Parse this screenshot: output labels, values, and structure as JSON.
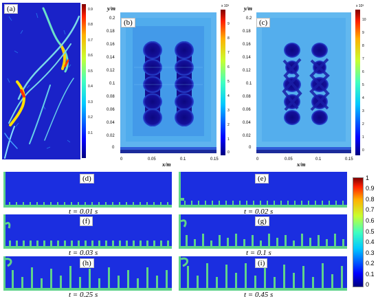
{
  "figure": {
    "panels": {
      "a": {
        "label": "(a)",
        "colorbar_ticks": [
          "0.9",
          "0.8",
          "0.7",
          "0.6",
          "0.5",
          "0.4",
          "0.3",
          "0.2",
          "0.1"
        ]
      },
      "b": {
        "label": "(b)",
        "exponent": "x 10³",
        "colorbar_ticks": [
          "9",
          "8",
          "7",
          "6",
          "5",
          "4",
          "3",
          "2",
          "1",
          "0"
        ]
      },
      "c": {
        "label": "(c)",
        "exponent": "x 10³",
        "colorbar_ticks": [
          "10",
          "9",
          "8",
          "7",
          "6",
          "5",
          "4",
          "3",
          "2",
          "1",
          "0"
        ]
      },
      "d": {
        "label": "(d)",
        "time": "t = 0.01 s"
      },
      "e": {
        "label": "(e)",
        "time": "t = 0.02 s"
      },
      "f": {
        "label": "(f)",
        "time": "t = 0.03 s"
      },
      "g": {
        "label": "(g)",
        "time": "t = 0.1 s"
      },
      "h": {
        "label": "(h)",
        "time": "t = 0.25 s"
      },
      "i": {
        "label": "(i)",
        "time": "t = 0.45 s"
      }
    },
    "axes": {
      "y_label": "y/m",
      "x_label": "x/m",
      "y_ticks": [
        "0.2",
        "0.18",
        "0.16",
        "0.14",
        "0.12",
        "0.1",
        "0.08",
        "0.06",
        "0.04",
        "0.02",
        "0"
      ],
      "x_ticks": [
        "0",
        "0.05",
        "0.1",
        "0.15"
      ]
    },
    "big_colorbar": {
      "ticks": [
        "1",
        "0.9",
        "0.8",
        "0.7",
        "0.6",
        "0.5",
        "0.4",
        "0.3",
        "0.2",
        "0.1",
        "0"
      ]
    },
    "colors": {
      "background_blue": "#1b2ee0",
      "deep_blue": "#120a8c",
      "fracture_green": "#5fd38a",
      "field_cyan": "#49b8f0"
    }
  }
}
